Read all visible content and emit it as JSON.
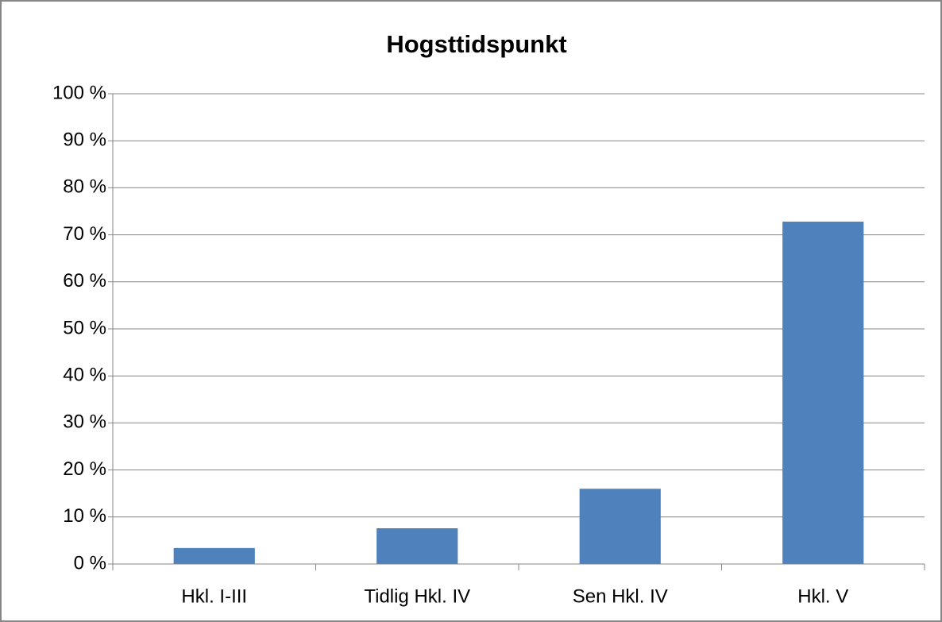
{
  "chart_data": {
    "type": "bar",
    "title": "Hogsttidspunkt",
    "categories": [
      "Hkl. I-III",
      "Tidlig Hkl. IV",
      "Sen Hkl. IV",
      "Hkl. V"
    ],
    "values": [
      3.4,
      7.6,
      16.0,
      72.8
    ],
    "color": "#4f81bd",
    "ylim": [
      0,
      100
    ],
    "yticks": [
      {
        "value": 0,
        "label": "0 %"
      },
      {
        "value": 10,
        "label": "10 %"
      },
      {
        "value": 20,
        "label": "20 %"
      },
      {
        "value": 30,
        "label": "30 %"
      },
      {
        "value": 40,
        "label": "40 %"
      },
      {
        "value": 50,
        "label": "50 %"
      },
      {
        "value": 60,
        "label": "60 %"
      },
      {
        "value": 70,
        "label": "70 %"
      },
      {
        "value": 80,
        "label": "80 %"
      },
      {
        "value": 90,
        "label": "90 %"
      },
      {
        "value": 100,
        "label": "100 %"
      }
    ],
    "grid": true
  }
}
